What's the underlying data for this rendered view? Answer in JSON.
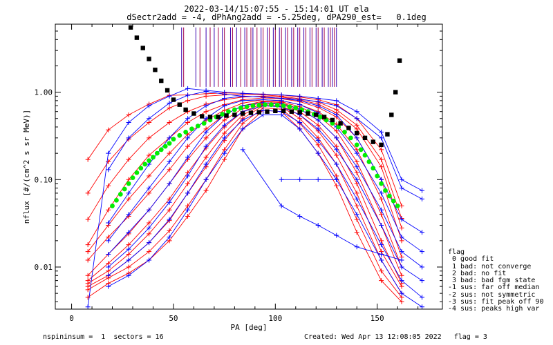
{
  "titles": {
    "line1": "2022-03-14/15:07:55 - 15:14:01 UT ela",
    "line2": "dSectr2add = -4, dPhAng2add = -5.25deg, dPA290_est=   0.1deg"
  },
  "footer": {
    "left": "nspininsum =  1  sectors = 16",
    "right": "Created: Wed Apr 13 12:08:05 2022   flag = 3"
  },
  "flag_legend": {
    "title": "flag",
    "items": [
      " 0 good fit",
      " 1 bad: not converge",
      " 2 bad: no fit",
      " 3 bad: bad fgm state",
      "-1 sus: far off median",
      "-2 sus: not symmetric",
      "-3 sus: fit peak off 90",
      "-4 sus: peaks high var"
    ]
  },
  "colors": {
    "red": "#ff0000",
    "blue": "#0000ff",
    "green": "#00ee00",
    "black": "#000000",
    "ticks": "#800080"
  },
  "chart_data": {
    "type": "line",
    "xlabel": "PA [deg]",
    "ylabel": "nflux [#/(cm^2 s sr MeV)]",
    "xlim": [
      -8,
      182
    ],
    "ylim": [
      0.0033,
      6.0
    ],
    "yscale": "log",
    "xticks": [
      0,
      50,
      100,
      150
    ],
    "yticks": [
      0.01,
      0.1,
      1.0
    ],
    "ytick_labels": [
      "0.01",
      "0.10",
      "1.00"
    ],
    "black_dotted": {
      "x": [
        29,
        32,
        35,
        38,
        41,
        44,
        47,
        50,
        53,
        56,
        60,
        64,
        68,
        72,
        76,
        80,
        84,
        88,
        92,
        96,
        100,
        104,
        108,
        112,
        116,
        120,
        124,
        128,
        132,
        136,
        140,
        144,
        148,
        152,
        155,
        157,
        159,
        161
      ],
      "y": [
        5.5,
        4.2,
        3.2,
        2.4,
        1.8,
        1.35,
        1.05,
        0.82,
        0.72,
        0.63,
        0.57,
        0.53,
        0.52,
        0.52,
        0.54,
        0.55,
        0.57,
        0.58,
        0.59,
        0.6,
        0.61,
        0.61,
        0.6,
        0.59,
        0.57,
        0.55,
        0.52,
        0.48,
        0.44,
        0.39,
        0.34,
        0.3,
        0.27,
        0.25,
        0.33,
        0.55,
        1.0,
        2.3
      ]
    },
    "green_dotted": {
      "x": [
        20,
        22,
        24,
        26,
        28,
        30,
        32,
        34,
        36,
        38,
        40,
        42,
        44,
        46,
        48,
        50,
        53,
        56,
        59,
        62,
        65,
        68,
        71,
        74,
        77,
        80,
        83,
        86,
        89,
        92,
        95,
        98,
        101,
        104,
        107,
        110,
        113,
        116,
        119,
        122,
        125,
        128,
        131,
        134,
        137,
        140,
        142,
        144,
        146,
        148,
        150,
        152,
        154,
        156,
        158,
        160
      ],
      "y": [
        0.05,
        0.058,
        0.068,
        0.078,
        0.09,
        0.105,
        0.12,
        0.135,
        0.15,
        0.165,
        0.18,
        0.2,
        0.22,
        0.24,
        0.26,
        0.29,
        0.32,
        0.35,
        0.38,
        0.41,
        0.44,
        0.48,
        0.52,
        0.56,
        0.6,
        0.63,
        0.66,
        0.68,
        0.7,
        0.71,
        0.72,
        0.72,
        0.71,
        0.7,
        0.68,
        0.66,
        0.63,
        0.6,
        0.56,
        0.52,
        0.48,
        0.44,
        0.4,
        0.35,
        0.3,
        0.25,
        0.22,
        0.19,
        0.16,
        0.135,
        0.11,
        0.09,
        0.075,
        0.065,
        0.057,
        0.05
      ]
    },
    "top_ticks": {
      "series": [
        {
          "color": "red",
          "x": [
            55,
            63,
            68,
            72,
            75,
            79,
            83,
            86,
            88,
            91,
            94,
            97,
            100,
            103,
            106,
            109,
            112,
            115,
            118,
            121,
            124,
            127,
            129
          ],
          "y_low": 1.15,
          "y_high": 5.5
        },
        {
          "color": "blue",
          "x": [
            54,
            61,
            66,
            70,
            74,
            78,
            81,
            85,
            89,
            93,
            96,
            99,
            102,
            105,
            108,
            111,
            114,
            117,
            120,
            123,
            126,
            128,
            130
          ],
          "y_low": 1.15,
          "y_high": 5.5
        }
      ]
    },
    "series": [
      {
        "color": "red",
        "x": [
          8,
          18,
          28,
          38,
          48,
          57,
          66,
          75,
          84,
          94,
          103,
          112,
          121,
          130,
          140,
          152,
          162
        ],
        "y": [
          0.17,
          0.37,
          0.55,
          0.73,
          0.92,
          0.93,
          0.96,
          0.98,
          0.97,
          0.95,
          0.93,
          0.88,
          0.82,
          0.72,
          0.5,
          0.22,
          0.05
        ]
      },
      {
        "color": "red",
        "x": [
          8,
          18,
          28,
          38,
          48,
          57,
          66,
          75,
          84,
          94,
          103,
          112,
          121,
          130,
          140,
          152,
          162
        ],
        "y": [
          0.07,
          0.16,
          0.29,
          0.45,
          0.66,
          0.8,
          0.9,
          0.93,
          0.94,
          0.93,
          0.9,
          0.84,
          0.77,
          0.63,
          0.42,
          0.17,
          0.036
        ]
      },
      {
        "color": "red",
        "x": [
          8,
          18,
          28,
          38,
          48,
          57,
          66,
          75,
          84,
          94,
          103,
          112,
          121,
          130,
          140,
          152,
          162
        ],
        "y": [
          0.035,
          0.085,
          0.17,
          0.3,
          0.45,
          0.6,
          0.73,
          0.82,
          0.88,
          0.9,
          0.88,
          0.82,
          0.73,
          0.58,
          0.38,
          0.14,
          0.028
        ]
      },
      {
        "color": "red",
        "x": [
          8,
          18,
          28,
          38,
          48,
          57,
          66,
          75,
          84,
          94,
          103,
          112,
          121,
          130,
          140,
          152,
          162
        ],
        "y": [
          0.018,
          0.045,
          0.1,
          0.19,
          0.3,
          0.45,
          0.6,
          0.72,
          0.82,
          0.86,
          0.84,
          0.78,
          0.67,
          0.52,
          0.3,
          0.1,
          0.02
        ]
      },
      {
        "color": "red",
        "x": [
          8,
          18,
          28,
          38,
          48,
          57,
          66,
          75,
          84,
          94,
          103,
          112,
          121,
          130,
          140,
          152,
          162
        ],
        "y": [
          0.015,
          0.03,
          0.06,
          0.11,
          0.2,
          0.33,
          0.48,
          0.62,
          0.75,
          0.82,
          0.8,
          0.72,
          0.6,
          0.43,
          0.22,
          0.06,
          0.013
        ]
      },
      {
        "color": "red",
        "x": [
          8,
          18,
          28,
          38,
          48,
          57,
          66,
          75,
          84,
          94,
          103,
          112,
          121,
          130,
          140,
          152,
          162
        ],
        "y": [
          0.012,
          0.022,
          0.038,
          0.07,
          0.13,
          0.24,
          0.38,
          0.55,
          0.7,
          0.79,
          0.78,
          0.68,
          0.54,
          0.36,
          0.16,
          0.04,
          0.01
        ]
      },
      {
        "color": "red",
        "x": [
          8,
          18,
          28,
          38,
          48,
          57,
          66,
          75,
          84,
          94,
          103,
          112,
          121,
          130,
          140,
          152,
          162
        ],
        "y": [
          0.008,
          0.014,
          0.024,
          0.045,
          0.09,
          0.17,
          0.3,
          0.48,
          0.65,
          0.78,
          0.76,
          0.64,
          0.48,
          0.3,
          0.12,
          0.03,
          0.008
        ]
      },
      {
        "color": "red",
        "x": [
          8,
          18,
          28,
          38,
          48,
          57,
          66,
          75,
          84,
          94,
          103,
          112,
          121,
          130,
          140,
          152,
          162
        ],
        "y": [
          0.007,
          0.011,
          0.018,
          0.032,
          0.06,
          0.12,
          0.23,
          0.4,
          0.6,
          0.74,
          0.73,
          0.6,
          0.42,
          0.24,
          0.09,
          0.02,
          0.0065
        ]
      },
      {
        "color": "red",
        "x": [
          8,
          18,
          28,
          38,
          48,
          57,
          66,
          75,
          84,
          94,
          103,
          112,
          121,
          130,
          140,
          152,
          162
        ],
        "y": [
          0.0065,
          0.009,
          0.014,
          0.024,
          0.045,
          0.09,
          0.18,
          0.34,
          0.55,
          0.72,
          0.7,
          0.55,
          0.36,
          0.19,
          0.07,
          0.015,
          0.006
        ]
      },
      {
        "color": "red",
        "x": [
          8,
          18,
          28,
          38,
          48,
          57,
          66,
          75,
          84,
          94,
          103,
          112,
          121,
          130,
          140,
          152,
          162
        ],
        "y": [
          0.006,
          0.008,
          0.012,
          0.019,
          0.034,
          0.07,
          0.14,
          0.28,
          0.5,
          0.7,
          0.68,
          0.5,
          0.3,
          0.15,
          0.05,
          0.012,
          0.005
        ]
      },
      {
        "color": "red",
        "x": [
          8,
          18,
          28,
          38,
          48,
          57,
          66,
          75,
          84,
          94,
          103,
          112,
          121,
          130,
          140,
          152,
          162
        ],
        "y": [
          0.0055,
          0.0075,
          0.01,
          0.015,
          0.026,
          0.05,
          0.1,
          0.22,
          0.44,
          0.66,
          0.64,
          0.44,
          0.25,
          0.11,
          0.035,
          0.009,
          0.0045
        ]
      },
      {
        "color": "red",
        "x": [
          8,
          18,
          28,
          38,
          48,
          57,
          66,
          75,
          84,
          94,
          103,
          112,
          121,
          130,
          140,
          152,
          162
        ],
        "y": [
          0.0045,
          0.0065,
          0.0085,
          0.012,
          0.02,
          0.038,
          0.075,
          0.17,
          0.38,
          0.62,
          0.6,
          0.38,
          0.2,
          0.085,
          0.025,
          0.007,
          0.004
        ]
      },
      {
        "color": "blue",
        "x": [
          8,
          18,
          28,
          38,
          48,
          57,
          66,
          75,
          84,
          94,
          103,
          112,
          121,
          130,
          140,
          152,
          162,
          172
        ],
        "y": [
          0.0035,
          0.2,
          0.45,
          0.7,
          0.9,
          1.1,
          1.05,
          1.0,
          0.97,
          0.95,
          0.93,
          0.9,
          0.85,
          0.8,
          0.6,
          0.35,
          0.1,
          0.075
        ]
      },
      {
        "color": "blue",
        "x": [
          18,
          28,
          38,
          48,
          57,
          66,
          75,
          84,
          94,
          103,
          112,
          121,
          130,
          140,
          152,
          162,
          172
        ],
        "y": [
          0.13,
          0.3,
          0.5,
          0.75,
          0.92,
          1.02,
          0.95,
          0.9,
          0.88,
          0.85,
          0.83,
          0.78,
          0.7,
          0.5,
          0.3,
          0.08,
          0.06
        ]
      },
      {
        "color": "blue",
        "x": [
          18,
          28,
          38,
          48,
          57,
          66,
          75,
          84,
          94,
          103,
          112,
          121,
          130,
          140,
          152,
          162,
          172
        ],
        "y": [
          0.032,
          0.07,
          0.15,
          0.3,
          0.5,
          0.7,
          0.85,
          0.9,
          0.88,
          0.85,
          0.8,
          0.7,
          0.55,
          0.3,
          0.1,
          0.035,
          0.025
        ]
      },
      {
        "color": "blue",
        "x": [
          18,
          28,
          38,
          48,
          57,
          66,
          75,
          84,
          94,
          103,
          112,
          121,
          130,
          140,
          152,
          162,
          172
        ],
        "y": [
          0.02,
          0.04,
          0.08,
          0.16,
          0.3,
          0.5,
          0.7,
          0.8,
          0.82,
          0.8,
          0.72,
          0.58,
          0.4,
          0.2,
          0.07,
          0.022,
          0.015
        ]
      },
      {
        "color": "blue",
        "x": [
          18,
          28,
          38,
          48,
          57,
          66,
          75,
          84,
          94,
          103,
          112,
          121,
          130,
          140,
          152,
          162,
          172
        ],
        "y": [
          0.014,
          0.025,
          0.045,
          0.09,
          0.18,
          0.35,
          0.55,
          0.7,
          0.76,
          0.74,
          0.64,
          0.48,
          0.3,
          0.14,
          0.045,
          0.015,
          0.01
        ]
      },
      {
        "color": "blue",
        "x": [
          18,
          28,
          38,
          48,
          57,
          66,
          75,
          84,
          94,
          103,
          112,
          121,
          130,
          140,
          152,
          162,
          172
        ],
        "y": [
          0.01,
          0.016,
          0.028,
          0.055,
          0.11,
          0.24,
          0.42,
          0.6,
          0.7,
          0.68,
          0.55,
          0.38,
          0.22,
          0.1,
          0.03,
          0.01,
          0.007
        ]
      },
      {
        "color": "blue",
        "x": [
          18,
          28,
          38,
          48,
          57,
          66,
          75,
          84,
          94,
          103,
          112,
          121,
          130,
          140,
          152,
          162,
          172
        ],
        "y": [
          0.008,
          0.012,
          0.019,
          0.035,
          0.07,
          0.15,
          0.3,
          0.48,
          0.62,
          0.6,
          0.45,
          0.28,
          0.15,
          0.06,
          0.018,
          0.007,
          0.0045
        ]
      },
      {
        "color": "blue",
        "x": [
          18,
          28,
          38,
          48,
          57,
          66,
          75,
          84,
          94,
          103,
          112,
          121,
          130,
          140,
          152,
          162,
          172
        ],
        "y": [
          0.006,
          0.008,
          0.012,
          0.022,
          0.045,
          0.1,
          0.2,
          0.38,
          0.55,
          0.55,
          0.38,
          0.2,
          0.1,
          0.04,
          0.012,
          0.005,
          0.0035
        ]
      },
      {
        "color": "blue",
        "x": [
          103,
          112,
          121,
          130
        ],
        "y": [
          0.1,
          0.1,
          0.1,
          0.1
        ]
      },
      {
        "color": "blue",
        "x": [
          84,
          103,
          112,
          121,
          130,
          140,
          152,
          162
        ],
        "y": [
          0.22,
          0.05,
          0.038,
          0.03,
          0.023,
          0.017,
          0.014,
          0.012
        ]
      }
    ]
  }
}
